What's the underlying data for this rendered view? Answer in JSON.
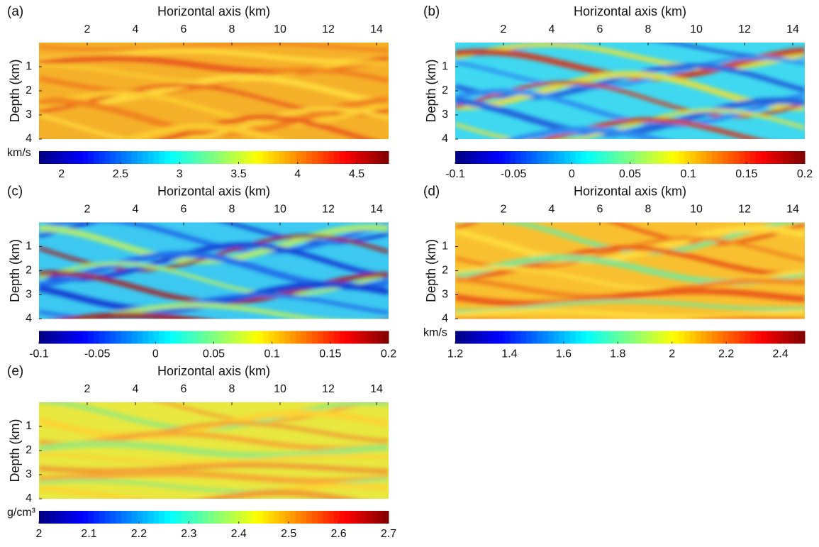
{
  "chart_data": [
    {
      "type": "heatmap",
      "panel_label": "(a)",
      "xlabel": "Horizontal axis (km)",
      "ylabel": "Depth (km)",
      "xlim": [
        0,
        14.5
      ],
      "xticks": [
        2,
        4,
        6,
        8,
        10,
        12,
        14
      ],
      "ylim": [
        0,
        4
      ],
      "yticks": [
        1,
        2,
        3,
        4
      ],
      "y_reversed": true,
      "colormap": "jet",
      "colorbar_label": "km/s",
      "clim": [
        1.81,
        4.77
      ],
      "cticks": [
        2,
        2.5,
        3,
        3.5,
        4,
        4.5
      ],
      "field_color": "#f5b02a",
      "stripe_colors": [
        "#f07a1a",
        "#ffe040",
        "#e8501a",
        "#fcd030"
      ]
    },
    {
      "type": "heatmap",
      "panel_label": "(b)",
      "xlabel": "Horizontal axis (km)",
      "ylabel": "Depth (km)",
      "xlim": [
        0,
        14.5
      ],
      "xticks": [
        2,
        4,
        6,
        8,
        10,
        12,
        14
      ],
      "ylim": [
        0,
        4
      ],
      "yticks": [
        1,
        2,
        3,
        4
      ],
      "y_reversed": true,
      "colormap": "jet",
      "clim": [
        -0.1,
        0.2
      ],
      "cticks": [
        -0.1,
        -0.05,
        0,
        0.05,
        0.1,
        0.15,
        0.2
      ],
      "field_color": "#3fd8f0",
      "stripe_colors": [
        "#1a50d8",
        "#f2e030",
        "#e02a10",
        "#2a80f0"
      ]
    },
    {
      "type": "heatmap",
      "panel_label": "(c)",
      "xlabel": "Horizontal axis (km)",
      "ylabel": "Depth (km)",
      "xlim": [
        0,
        14.5
      ],
      "xticks": [
        2,
        4,
        6,
        8,
        10,
        12,
        14
      ],
      "ylim": [
        0,
        4
      ],
      "yticks": [
        1,
        2,
        3,
        4
      ],
      "y_reversed": true,
      "colormap": "jet",
      "clim": [
        -0.1,
        0.2
      ],
      "cticks": [
        -0.1,
        -0.05,
        0,
        0.05,
        0.1,
        0.15,
        0.2
      ],
      "field_color": "#3cc8f0",
      "stripe_colors": [
        "#0a2ad0",
        "#1a60e8",
        "#c0f060",
        "#b01010"
      ]
    },
    {
      "type": "heatmap",
      "panel_label": "(d)",
      "xlabel": "Horizontal axis (km)",
      "ylabel": "Depth (km)",
      "xlim": [
        0,
        14.5
      ],
      "xticks": [
        2,
        4,
        6,
        8,
        10,
        12,
        14
      ],
      "ylim": [
        0,
        4
      ],
      "yticks": [
        1,
        2,
        3,
        4
      ],
      "y_reversed": true,
      "colormap": "jet",
      "colorbar_label": "km/s",
      "clim": [
        1.2,
        2.49
      ],
      "cticks": [
        1.2,
        1.4,
        1.6,
        1.8,
        2,
        2.2,
        2.4
      ],
      "field_color": "#f8c030",
      "stripe_colors": [
        "#e84a18",
        "#70e8a0",
        "#ffe040",
        "#f07a1a"
      ]
    },
    {
      "type": "heatmap",
      "panel_label": "(e)",
      "xlabel": "Horizontal axis (km)",
      "ylabel": "Depth (km)",
      "xlim": [
        0,
        14.5
      ],
      "xticks": [
        2,
        4,
        6,
        8,
        10,
        12,
        14
      ],
      "ylim": [
        0,
        4
      ],
      "yticks": [
        1,
        2,
        3,
        4
      ],
      "y_reversed": true,
      "colormap": "jet",
      "colorbar_label": "g/cm³",
      "clim": [
        2,
        2.7
      ],
      "cticks": [
        2,
        2.1,
        2.2,
        2.3,
        2.4,
        2.5,
        2.6,
        2.7
      ],
      "field_color": "#e8e840",
      "stripe_colors": [
        "#f8a030",
        "#90e880",
        "#ffd030",
        "#f09030"
      ]
    }
  ]
}
